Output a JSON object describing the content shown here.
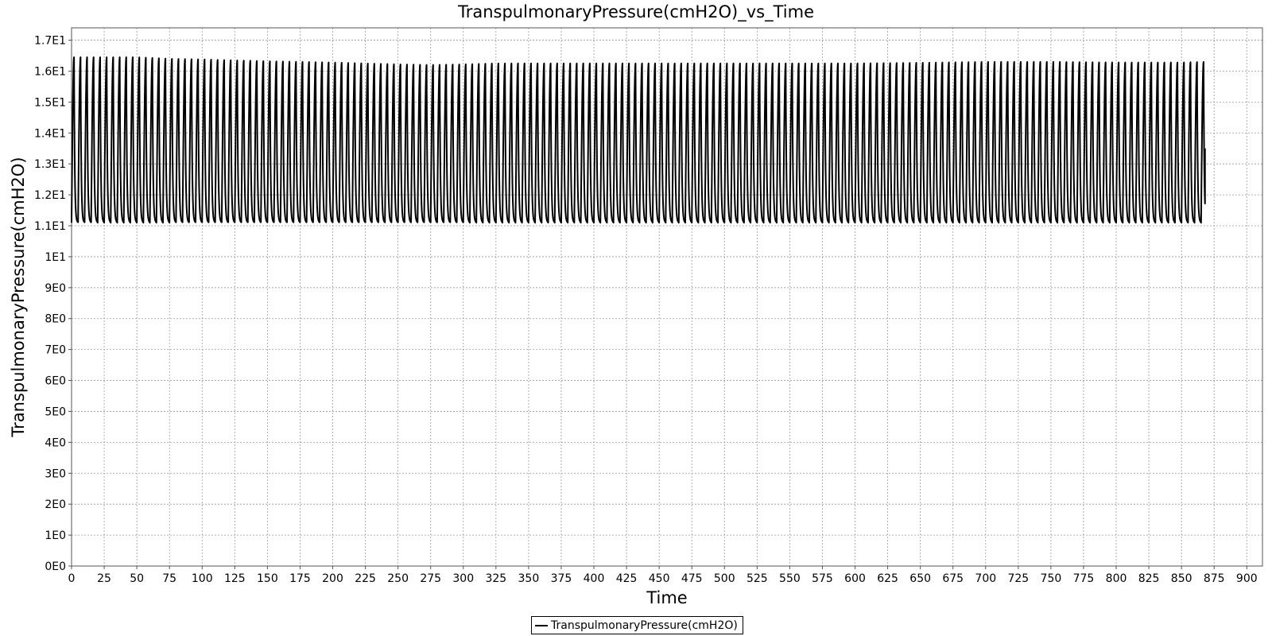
{
  "chart_data": {
    "type": "line",
    "title": "TranspulmonaryPressure(cmH2O)_vs_Time",
    "xlabel": "Time",
    "ylabel": "TranspulmonaryPressure(cmH2O)",
    "xlim": [
      0,
      912
    ],
    "ylim": [
      0,
      17.4
    ],
    "x_ticks": [
      0,
      25,
      50,
      75,
      100,
      125,
      150,
      175,
      200,
      225,
      250,
      275,
      300,
      325,
      350,
      375,
      400,
      425,
      450,
      475,
      500,
      525,
      550,
      575,
      600,
      625,
      650,
      675,
      700,
      725,
      750,
      775,
      800,
      825,
      850,
      875,
      900
    ],
    "y_ticks": [
      0,
      1,
      2,
      3,
      4,
      5,
      6,
      7,
      8,
      9,
      10,
      11,
      12,
      13,
      14,
      15,
      16,
      17
    ],
    "y_tick_labels": [
      "0E0",
      "1E0",
      "2E0",
      "3E0",
      "4E0",
      "5E0",
      "6E0",
      "7E0",
      "8E0",
      "9E0",
      "1E1",
      "1.1E1",
      "1.2E1",
      "1.3E1",
      "1.4E1",
      "1.5E1",
      "1.6E1",
      "1.7E1"
    ],
    "grid": true,
    "legend_position": "bottom-center",
    "series": [
      {
        "name": "TranspulmonaryPressure(cmH2O)",
        "color": "#000000",
        "x_start": 0,
        "x_end": 868,
        "breath_period_s": 5.0,
        "inspiration_fraction": 0.38,
        "baseline": 11.1,
        "peaks": [
          [
            0,
            16.45
          ],
          [
            5,
            16.45
          ],
          [
            10,
            16.45
          ],
          [
            25,
            16.45
          ],
          [
            50,
            16.45
          ],
          [
            75,
            16.4
          ],
          [
            100,
            16.38
          ],
          [
            125,
            16.35
          ],
          [
            150,
            16.32
          ],
          [
            175,
            16.3
          ],
          [
            200,
            16.28
          ],
          [
            225,
            16.25
          ],
          [
            250,
            16.22
          ],
          [
            275,
            16.2
          ],
          [
            300,
            16.22
          ],
          [
            325,
            16.25
          ],
          [
            350,
            16.25
          ],
          [
            400,
            16.25
          ],
          [
            450,
            16.25
          ],
          [
            500,
            16.25
          ],
          [
            550,
            16.25
          ],
          [
            600,
            16.25
          ],
          [
            650,
            16.27
          ],
          [
            700,
            16.3
          ],
          [
            750,
            16.3
          ],
          [
            800,
            16.28
          ],
          [
            850,
            16.28
          ],
          [
            868,
            16.3
          ]
        ],
        "final_value": 13.5
      }
    ]
  }
}
